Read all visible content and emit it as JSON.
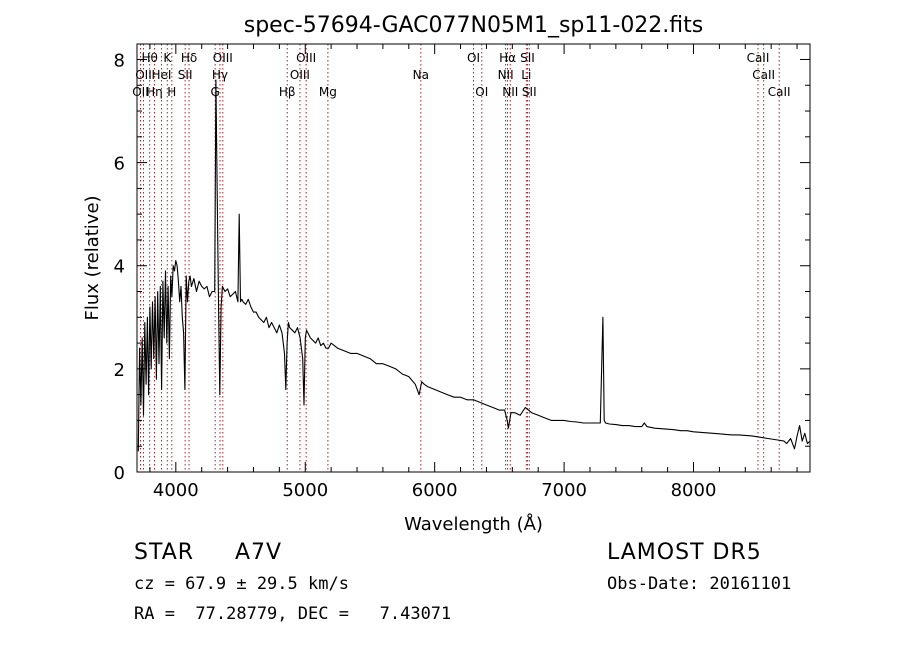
{
  "chart_data": {
    "type": "line",
    "title": "spec-57694-GAC077N05M1_sp11-022.fits",
    "xlabel": "Wavelength (Å)",
    "ylabel": "Flux (relative)",
    "xlim": [
      3700,
      8900
    ],
    "ylim": [
      0,
      8.3
    ],
    "xticks": [
      "4000",
      "5000",
      "6000",
      "7000",
      "8000"
    ],
    "yticks": [
      "0",
      "2",
      "4",
      "6",
      "8"
    ],
    "xtick_values": [
      4000,
      5000,
      6000,
      7000,
      8000
    ],
    "ytick_values": [
      0,
      2,
      4,
      6,
      8
    ],
    "grid": false,
    "series": [
      {
        "x": [
          3710,
          3720,
          3730,
          3740,
          3750,
          3760,
          3770,
          3780,
          3790,
          3800,
          3810,
          3820,
          3830,
          3840,
          3850,
          3860,
          3870,
          3880,
          3890,
          3900,
          3910,
          3920,
          3930,
          3940,
          3950,
          3960,
          3970,
          3980,
          3990,
          4000,
          4010,
          4020,
          4030,
          4040,
          4050,
          4060,
          4070,
          4080,
          4090,
          4100,
          4110,
          4120,
          4140,
          4160,
          4180,
          4200,
          4220,
          4240,
          4260,
          4280,
          4300,
          4310,
          4320,
          4330,
          4340,
          4350,
          4360,
          4380,
          4400,
          4420,
          4440,
          4460,
          4480,
          4490,
          4500,
          4510,
          4520,
          4540,
          4560,
          4580,
          4600,
          4620,
          4640,
          4660,
          4680,
          4700,
          4720,
          4740,
          4760,
          4780,
          4800,
          4820,
          4840,
          4850,
          4860,
          4870,
          4880,
          4900,
          4920,
          4940,
          4960,
          4980,
          4990,
          5000,
          5010,
          5020,
          5040,
          5060,
          5080,
          5100,
          5120,
          5140,
          5160,
          5180,
          5200,
          5250,
          5300,
          5350,
          5400,
          5450,
          5500,
          5550,
          5600,
          5650,
          5700,
          5750,
          5800,
          5850,
          5880,
          5900,
          5920,
          5950,
          6000,
          6050,
          6100,
          6150,
          6200,
          6250,
          6300,
          6350,
          6400,
          6450,
          6500,
          6540,
          6560,
          6570,
          6590,
          6620,
          6660,
          6700,
          6750,
          6800,
          6850,
          6900,
          6950,
          7000,
          7050,
          7100,
          7150,
          7200,
          7250,
          7280,
          7300,
          7310,
          7320,
          7350,
          7400,
          7450,
          7500,
          7550,
          7600,
          7620,
          7640,
          7700,
          7750,
          7800,
          7850,
          7900,
          7950,
          8000,
          8050,
          8100,
          8150,
          8200,
          8250,
          8300,
          8350,
          8400,
          8450,
          8500,
          8550,
          8600,
          8650,
          8700,
          8720,
          8750,
          8780,
          8800,
          8820,
          8840,
          8860,
          8880,
          8900
        ],
        "y": [
          0.4,
          2.4,
          1.3,
          2.6,
          1.1,
          2.9,
          1.7,
          3.0,
          1.5,
          3.2,
          2.0,
          3.3,
          2.2,
          3.4,
          1.8,
          3.5,
          2.1,
          3.6,
          1.6,
          3.7,
          2.6,
          3.9,
          2.5,
          3.6,
          2.2,
          3.8,
          3.4,
          4.0,
          3.9,
          4.1,
          4.0,
          3.7,
          3.3,
          3.6,
          3.0,
          2.7,
          1.6,
          3.8,
          3.3,
          3.7,
          3.8,
          3.6,
          3.75,
          3.5,
          3.7,
          3.6,
          3.55,
          3.6,
          3.4,
          3.5,
          3.5,
          7.6,
          5.4,
          3.3,
          1.5,
          3.2,
          3.6,
          3.5,
          3.55,
          3.4,
          3.45,
          3.5,
          3.3,
          5.0,
          3.3,
          3.35,
          3.3,
          3.25,
          3.35,
          3.2,
          3.1,
          3.1,
          3.0,
          2.95,
          2.9,
          3.0,
          2.8,
          2.9,
          2.8,
          2.7,
          2.85,
          2.7,
          2.3,
          1.6,
          2.5,
          2.9,
          2.8,
          2.75,
          2.7,
          2.8,
          2.6,
          2.2,
          1.3,
          2.6,
          2.75,
          2.7,
          2.6,
          2.55,
          2.5,
          2.6,
          2.45,
          2.5,
          2.4,
          2.4,
          2.5,
          2.4,
          2.35,
          2.3,
          2.3,
          2.25,
          2.2,
          2.1,
          2.1,
          2.05,
          2.0,
          1.9,
          1.85,
          1.7,
          1.5,
          1.75,
          1.7,
          1.65,
          1.6,
          1.55,
          1.5,
          1.45,
          1.45,
          1.4,
          1.4,
          1.35,
          1.3,
          1.25,
          1.2,
          1.2,
          1.0,
          0.85,
          1.15,
          1.15,
          1.1,
          1.25,
          1.15,
          1.1,
          1.05,
          1.0,
          1.0,
          1.0,
          0.98,
          0.97,
          0.95,
          0.95,
          0.95,
          0.95,
          3.0,
          1.0,
          0.95,
          0.93,
          0.92,
          0.9,
          0.9,
          0.88,
          0.88,
          0.95,
          0.88,
          0.85,
          0.84,
          0.83,
          0.82,
          0.8,
          0.8,
          0.78,
          0.77,
          0.76,
          0.75,
          0.74,
          0.73,
          0.72,
          0.72,
          0.71,
          0.7,
          0.68,
          0.66,
          0.64,
          0.62,
          0.6,
          0.55,
          0.65,
          0.45,
          0.7,
          0.9,
          0.6,
          0.75,
          0.55,
          0.6
        ]
      }
    ],
    "lines": [
      {
        "x": 3727,
        "label": "OII",
        "row": 2
      },
      {
        "x": 3750,
        "label": "OII",
        "row": 1
      },
      {
        "x": 3798,
        "label": "Hθ",
        "row": 0
      },
      {
        "x": 3835,
        "label": "Hη",
        "row": 2
      },
      {
        "x": 3889,
        "label": "HeI",
        "row": 1
      },
      {
        "x": 3934,
        "label": "K",
        "row": 0
      },
      {
        "x": 3969,
        "label": "H",
        "row": 2
      },
      {
        "x": 4072,
        "label": "SII",
        "row": 1
      },
      {
        "x": 4102,
        "label": "Hδ",
        "row": 0
      },
      {
        "x": 4304,
        "label": "G",
        "row": 2
      },
      {
        "x": 4341,
        "label": "Hγ",
        "row": 1
      },
      {
        "x": 4363,
        "label": "OIII",
        "row": 0
      },
      {
        "x": 4861,
        "label": "Hβ",
        "row": 2
      },
      {
        "x": 4959,
        "label": "OIII",
        "row": 1
      },
      {
        "x": 5007,
        "label": "OIII",
        "row": 0
      },
      {
        "x": 5175,
        "label": "Mg",
        "row": 2
      },
      {
        "x": 5893,
        "label": "Na",
        "row": 1
      },
      {
        "x": 6300,
        "label": "OI",
        "row": 0
      },
      {
        "x": 6364,
        "label": "OI",
        "row": 2
      },
      {
        "x": 6548,
        "label": "NII",
        "row": 1
      },
      {
        "x": 6563,
        "label": "Hα",
        "row": 0
      },
      {
        "x": 6584,
        "label": "NII",
        "row": 2
      },
      {
        "x": 6708,
        "label": "Li",
        "row": 1
      },
      {
        "x": 6717,
        "label": "SII",
        "row": 0
      },
      {
        "x": 6731,
        "label": "SII",
        "row": 2
      },
      {
        "x": 8498,
        "label": "CaII",
        "row": 0
      },
      {
        "x": 8542,
        "label": "CaII",
        "row": 1
      },
      {
        "x": 8662,
        "label": "CaII",
        "row": 2
      }
    ],
    "colors": {
      "spectrum": "#000000",
      "line_marker": "#b22222"
    }
  },
  "info": {
    "object_class": "STAR",
    "subclass": "A7V",
    "survey": "LAMOST DR5",
    "cz": "cz = 67.9 ± 29.5 km/s",
    "obs_date": "Obs-Date: 20161101",
    "radec": "RA =  77.28779, DEC =   7.43071"
  }
}
